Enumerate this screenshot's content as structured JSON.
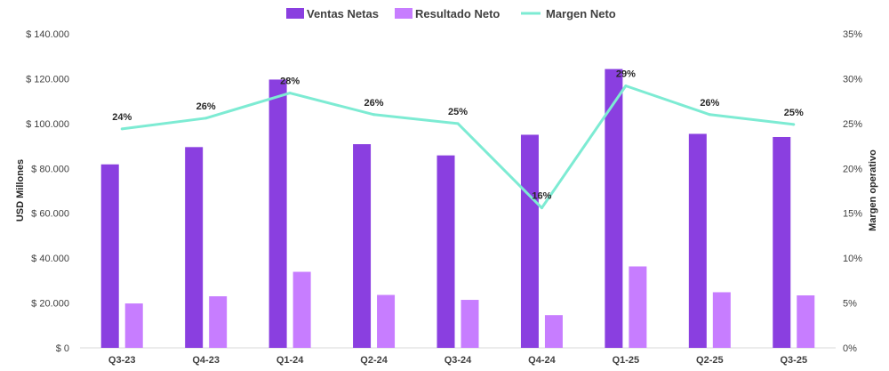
{
  "chart_data": {
    "type": "bar",
    "categories": [
      "Q3-23",
      "Q4-23",
      "Q1-24",
      "Q2-24",
      "Q3-24",
      "Q4-24",
      "Q1-25",
      "Q2-25",
      "Q3-25"
    ],
    "series": [
      {
        "name": "Ventas Netas",
        "kind": "bar",
        "axis": "left",
        "color": "#8A3FE0",
        "values": [
          81800,
          89500,
          119600,
          90800,
          85800,
          95000,
          124300,
          95400,
          94000
        ]
      },
      {
        "name": "Resultado Neto",
        "kind": "bar",
        "axis": "left",
        "color": "#C77DFF",
        "values": [
          19800,
          23000,
          33900,
          23600,
          21400,
          14600,
          36300,
          24800,
          23400
        ]
      },
      {
        "name": "Margen Neto",
        "kind": "line",
        "axis": "right",
        "color": "#7DEBD3",
        "values": [
          24.4,
          25.6,
          28.4,
          26.0,
          25.0,
          15.6,
          29.2,
          26.0,
          24.9
        ],
        "labels": [
          "24%",
          "26%",
          "28%",
          "26%",
          "25%",
          "16%",
          "29%",
          "26%",
          "25%"
        ]
      }
    ],
    "ylabel": "USD Millones",
    "y2label": "Margen operativo",
    "ylim": [
      0,
      140000
    ],
    "y2lim": [
      0,
      35
    ],
    "yticks": [
      "$ 0",
      "$ 20.000",
      "$ 40.000",
      "$ 60.000",
      "$ 80.000",
      "$ 100.000",
      "$ 120.000",
      "$ 140.000"
    ],
    "y2ticks": [
      "0%",
      "5%",
      "10%",
      "15%",
      "20%",
      "25%",
      "30%",
      "35%"
    ],
    "grid": false,
    "legend_position": "top"
  }
}
